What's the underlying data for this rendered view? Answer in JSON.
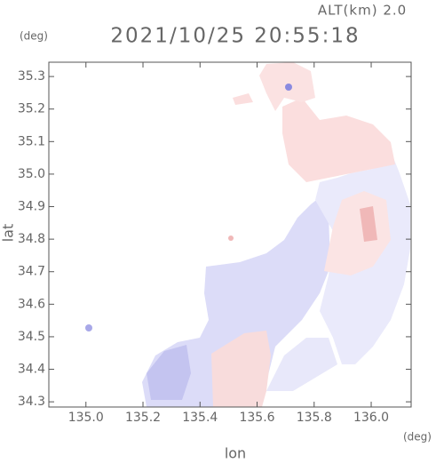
{
  "chart_data": {
    "type": "map",
    "title": "2021/10/25 20:55:18",
    "subtitle": "ALT(km) 2.0",
    "x_label": "lon",
    "y_label": "lat",
    "x_unit": "(deg)",
    "y_unit": "(deg)",
    "xlim": [
      134.87,
      136.14
    ],
    "ylim": [
      34.284,
      35.344
    ],
    "xticks": [
      {
        "value": 135.0,
        "label": "135.0"
      },
      135.2,
      135.4,
      135.6,
      135.8,
      {
        "value": 136.0,
        "label": "136.0"
      }
    ],
    "yticks": [
      34.3,
      34.4,
      34.5,
      34.6,
      34.7,
      34.8,
      34.9,
      {
        "value": 35.0,
        "label": "35.0"
      },
      35.1,
      35.2,
      35.3
    ]
  }
}
